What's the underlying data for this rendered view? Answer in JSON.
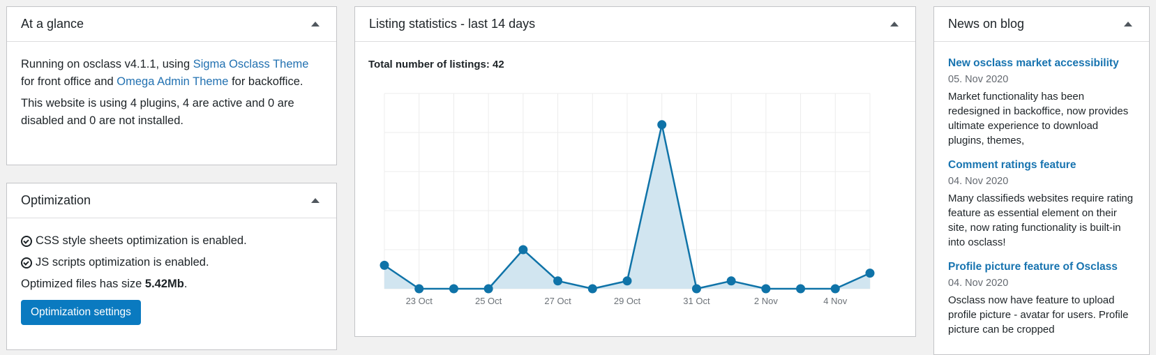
{
  "glance": {
    "title": "At a glance",
    "line1_pre": "Running on osclass v4.1.1, using ",
    "theme_front": "Sigma Osclass Theme",
    "line1_mid": " for front office and ",
    "theme_admin": "Omega Admin Theme",
    "line1_post": " for backoffice.",
    "plugins_text": "This website is using 4 plugins, 4 are active and 0 are disabled and 0 are not installed."
  },
  "optimization": {
    "title": "Optimization",
    "css_status": "CSS style sheets optimization is enabled.",
    "js_status": "JS scripts optimization is enabled.",
    "size_label": "Optimized files has size ",
    "size_value": "5.42Mb",
    "size_suffix": ".",
    "settings_button": "Optimization settings"
  },
  "stats": {
    "title": "Listing statistics - last 14 days",
    "total_label": "Total number of listings: 42"
  },
  "chart_data": {
    "type": "area",
    "title": "Total number of listings: 42",
    "x_tick_labels": [
      "23 Oct",
      "25 Oct",
      "27 Oct",
      "29 Oct",
      "31 Oct",
      "2 Nov",
      "4 Nov"
    ],
    "x_tick_positions": [
      1,
      3,
      5,
      7,
      9,
      11,
      13
    ],
    "values": [
      3,
      0,
      0,
      0,
      5,
      1,
      0,
      1,
      21,
      0,
      1,
      0,
      0,
      0,
      2
    ],
    "ylim": [
      0,
      25
    ],
    "grid": true,
    "line_color": "#0f73a8",
    "fill_color": "#d1e5f0"
  },
  "news": {
    "title": "News on blog",
    "items": [
      {
        "title": "New osclass market accessibility",
        "date": "05. Nov 2020",
        "text": "Market functionality has been redesigned in backoffice, now provides ultimate experience to download plugins, themes,"
      },
      {
        "title": "Comment ratings feature",
        "date": "04. Nov 2020",
        "text": "Many classifieds websites require rating feature as essential element on their site, now rating functionality is built-in into osclass!"
      },
      {
        "title": "Profile picture feature of Osclass",
        "date": "04. Nov 2020",
        "text": "Osclass now have feature to upload profile picture - avatar for users. Profile picture can be cropped"
      }
    ]
  }
}
